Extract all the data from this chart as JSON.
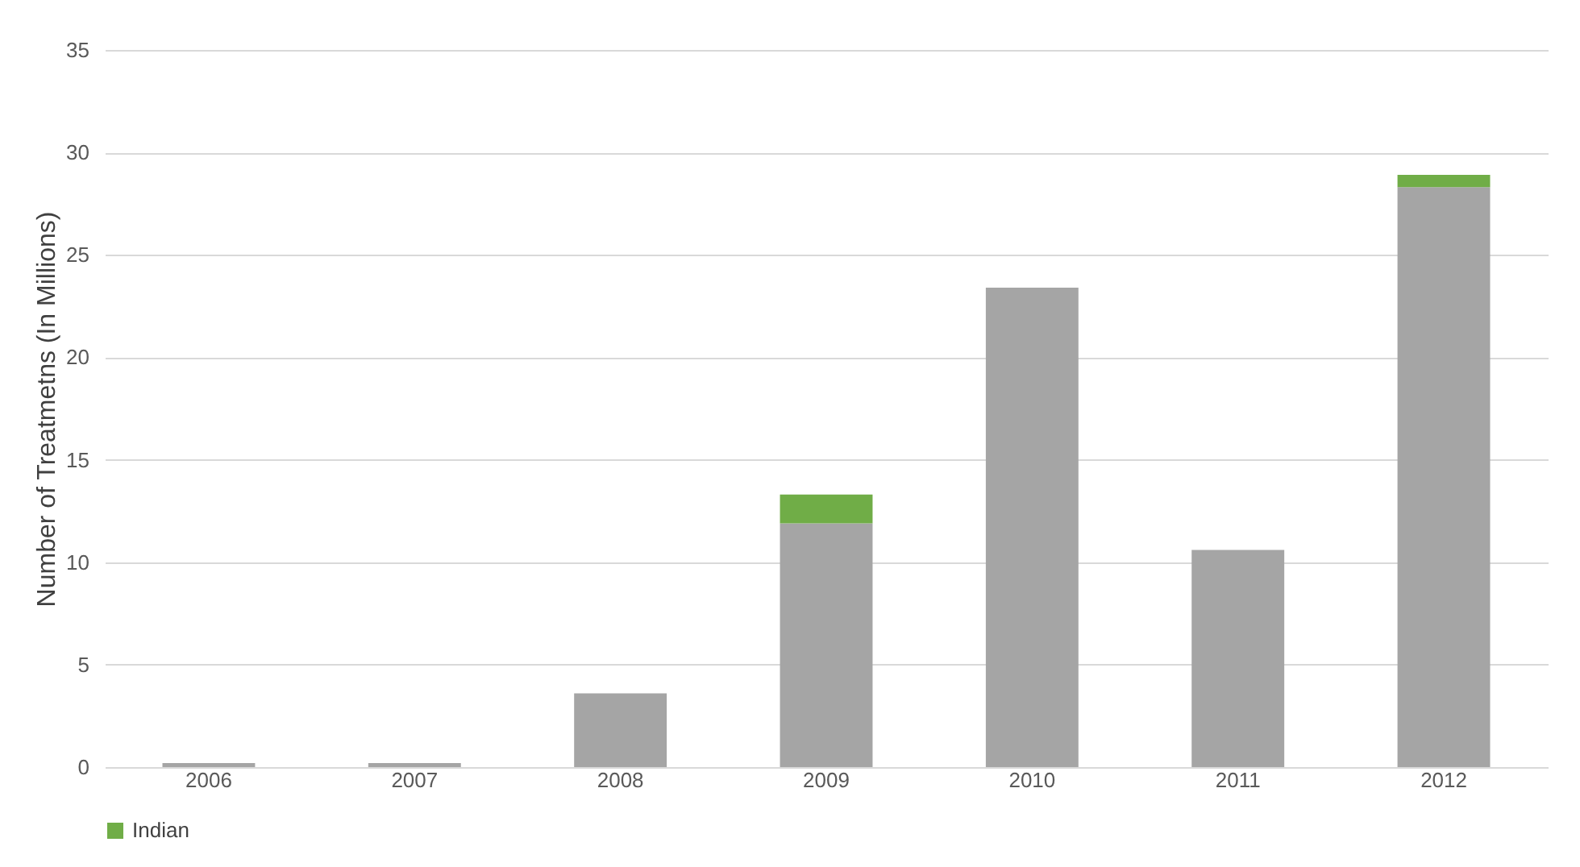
{
  "chart_data": {
    "type": "bar",
    "stacked": true,
    "ylabel": "Number of Treatmetns (In Millions)",
    "categories": [
      "2006",
      "2007",
      "2008",
      "2009",
      "2010",
      "2011",
      "2012"
    ],
    "series": [
      {
        "color": "#a5a5a5",
        "values": [
          0.2,
          0.2,
          3.6,
          11.9,
          23.4,
          10.6,
          28.3
        ]
      },
      {
        "name": "Indian",
        "color": "#70ad47",
        "values": [
          0,
          0,
          0,
          1.4,
          0,
          0,
          0.6
        ]
      }
    ],
    "ylim": [
      0,
      35
    ],
    "yticks": [
      0,
      5,
      10,
      15,
      20,
      25,
      30,
      35
    ],
    "grid": "y",
    "legend": "bottom"
  }
}
